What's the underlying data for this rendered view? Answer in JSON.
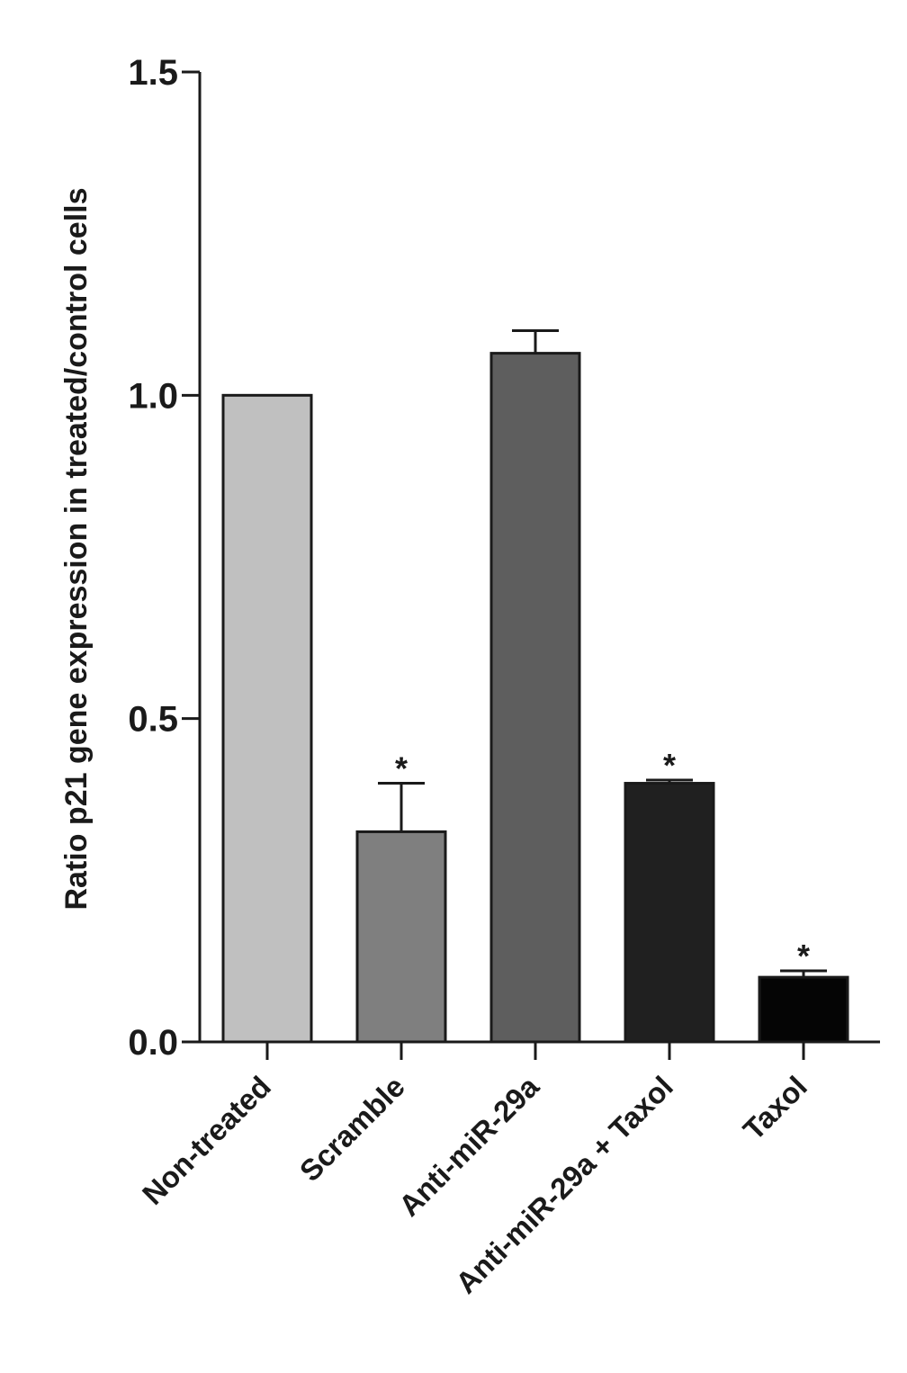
{
  "chart_data": {
    "type": "bar",
    "title": "",
    "xlabel": "",
    "ylabel": "Ratio p21 gene expression in treated/control cells",
    "ylim": [
      0,
      1.5
    ],
    "yticks": [
      {
        "value": 0.0,
        "label": "0.0"
      },
      {
        "value": 0.5,
        "label": "0.5"
      },
      {
        "value": 1.0,
        "label": "1.0"
      },
      {
        "value": 1.5,
        "label": "1.5"
      }
    ],
    "grid": false,
    "legend": "none",
    "categories": [
      "Non-treated",
      "Scramble",
      "Anti-miR-29a",
      "Anti-miR-29a + Taxol",
      "Taxol"
    ],
    "values": [
      1.0,
      0.325,
      1.065,
      0.4,
      0.1
    ],
    "error_upper": [
      0.0,
      0.4,
      1.1,
      0.405,
      0.11
    ],
    "significance": [
      "",
      "*",
      "",
      "*",
      "*"
    ],
    "bar_colors": [
      "#c0c0c0",
      "#7f7f7f",
      "#5e5e5e",
      "#202020",
      "#050505"
    ],
    "edge_color": "#1a1a1a"
  }
}
